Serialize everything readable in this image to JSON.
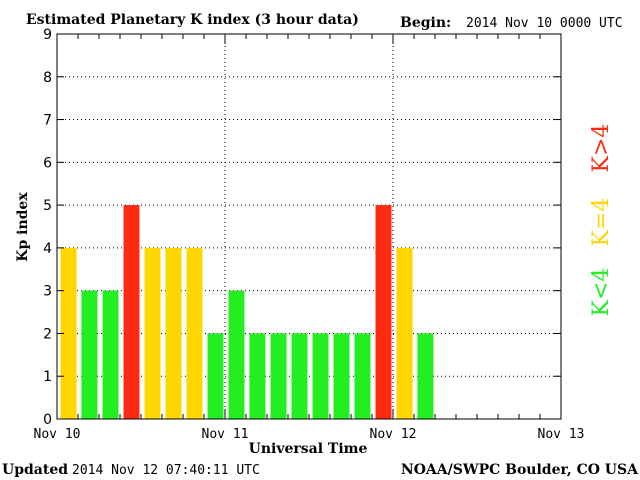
{
  "chart_data": {
    "type": "bar",
    "title": "Estimated Planetary K index (3 hour data)",
    "begin_label": "Begin:",
    "begin_value": "2014 Nov 10 0000 UTC",
    "xlabel": "Universal Time",
    "ylabel": "Kp index",
    "ylim": [
      0,
      9
    ],
    "yticks": [
      "0",
      "1",
      "2",
      "3",
      "4",
      "5",
      "6",
      "7",
      "8",
      "9"
    ],
    "xlim": [
      0,
      24
    ],
    "xtick_labels": [
      "Nov 10",
      "Nov 11",
      "Nov 12",
      "Nov 13"
    ],
    "grid": true,
    "values": [
      4,
      3,
      3,
      5,
      4,
      4,
      4,
      2,
      3,
      2,
      2,
      2,
      2,
      2,
      2,
      5,
      4,
      2
    ],
    "legend": [
      {
        "label": "K<4",
        "color": "#22ee22"
      },
      {
        "label": "K=4",
        "color": "#ffd700"
      },
      {
        "label": "K>4",
        "color": "#ff2a10"
      }
    ],
    "colors": {
      "low": "#22ee22",
      "equal": "#ffd700",
      "high": "#ff2a10"
    }
  },
  "footer": {
    "updated_label": "Updated",
    "updated_value": "2014 Nov 12 07:40:11 UTC",
    "source": "NOAA/SWPC Boulder, CO USA"
  }
}
